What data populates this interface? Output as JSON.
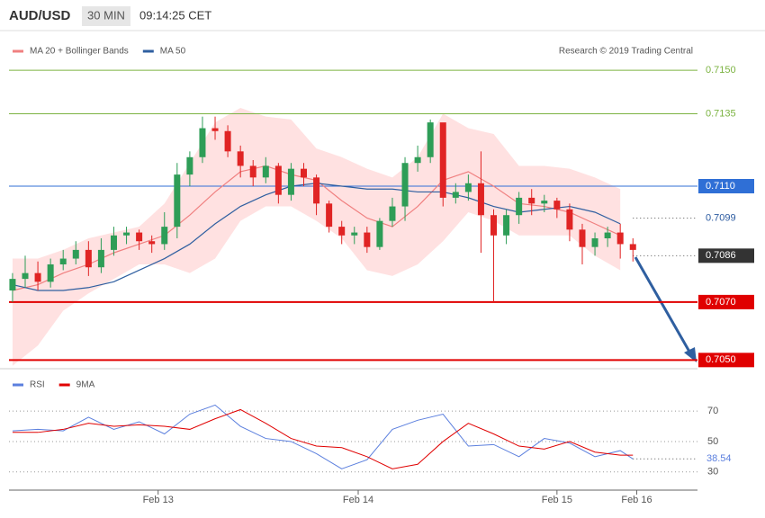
{
  "header": {
    "symbol": "AUD/USD",
    "interval": "30 MIN",
    "time": "09:14:25 CET"
  },
  "chart_data": [
    {
      "type": "candlestick",
      "source": "Research © 2019 Trading Central",
      "xlim": [
        -0.28,
        54.1
      ],
      "ylim": [
        0.7047,
        0.7155
      ],
      "up_color": "#2e9d57",
      "down_color": "#e02424",
      "candles": {
        "open": [
          0.7074,
          0.7078,
          0.708,
          0.7077,
          0.7083,
          0.7085,
          0.7088,
          0.7082,
          0.7088,
          0.7093,
          0.7094,
          0.7091,
          0.709,
          0.7096,
          0.7114,
          0.712,
          0.713,
          0.7129,
          0.7122,
          0.7117,
          0.7113,
          0.7117,
          0.7107,
          0.7116,
          0.7113,
          0.7104,
          0.7096,
          0.7093,
          0.7094,
          0.7089,
          0.7098,
          0.7103,
          0.7118,
          0.712,
          0.7132,
          0.7106,
          0.7108,
          0.7111,
          0.71,
          0.7093,
          0.71,
          0.7106,
          0.7104,
          0.7105,
          0.7102,
          0.7095,
          0.7089,
          0.7092,
          0.7094,
          0.709
        ],
        "high": [
          0.708,
          0.7086,
          0.7084,
          0.7085,
          0.7088,
          0.7091,
          0.7091,
          0.7092,
          0.7096,
          0.7096,
          0.7095,
          0.7093,
          0.7101,
          0.7118,
          0.7122,
          0.7134,
          0.7134,
          0.7131,
          0.7124,
          0.7119,
          0.712,
          0.7118,
          0.7118,
          0.7118,
          0.7114,
          0.7105,
          0.7098,
          0.7096,
          0.7096,
          0.7099,
          0.7106,
          0.712,
          0.7124,
          0.7133,
          0.7131,
          0.7111,
          0.7114,
          0.7122,
          0.7102,
          0.7102,
          0.7108,
          0.7109,
          0.7107,
          0.7106,
          0.7104,
          0.7097,
          0.7094,
          0.7096,
          0.7097,
          0.7092
        ],
        "low": [
          0.707,
          0.7075,
          0.7074,
          0.7075,
          0.7081,
          0.7083,
          0.7079,
          0.708,
          0.7086,
          0.709,
          0.7088,
          0.7087,
          0.7088,
          0.7092,
          0.711,
          0.7118,
          0.7126,
          0.712,
          0.7113,
          0.711,
          0.7111,
          0.7104,
          0.7105,
          0.711,
          0.71,
          0.7094,
          0.709,
          0.709,
          0.7087,
          0.7088,
          0.7096,
          0.7098,
          0.7115,
          0.7118,
          0.7103,
          0.7104,
          0.7105,
          0.7087,
          0.707,
          0.709,
          0.7097,
          0.71,
          0.7101,
          0.7099,
          0.7091,
          0.7083,
          0.7086,
          0.7089,
          0.7085,
          0.7084
        ],
        "close": [
          0.7078,
          0.708,
          0.7077,
          0.7083,
          0.7085,
          0.7088,
          0.7082,
          0.7088,
          0.7093,
          0.7094,
          0.7091,
          0.709,
          0.7096,
          0.7114,
          0.712,
          0.713,
          0.7129,
          0.7122,
          0.7117,
          0.7113,
          0.7117,
          0.7107,
          0.7116,
          0.7113,
          0.7104,
          0.7096,
          0.7093,
          0.7094,
          0.7089,
          0.7098,
          0.7103,
          0.7118,
          0.712,
          0.7132,
          0.7106,
          0.7108,
          0.7111,
          0.71,
          0.7093,
          0.71,
          0.7106,
          0.7104,
          0.7105,
          0.7102,
          0.7095,
          0.7089,
          0.7092,
          0.7094,
          0.709,
          0.7088
        ]
      },
      "series": [
        {
          "name": "MA 20 + Bollinger Bands",
          "color": "#f08080",
          "band_color": "#ffd9d9",
          "x": [
            0,
            2,
            4,
            6,
            8,
            10,
            12,
            14,
            16,
            18,
            20,
            22,
            24,
            26,
            28,
            30,
            32,
            34,
            36,
            38,
            40,
            42,
            44,
            46,
            48
          ],
          "values": [
            0.7074,
            0.7076,
            0.708,
            0.7083,
            0.7087,
            0.709,
            0.7093,
            0.71,
            0.7108,
            0.7115,
            0.7117,
            0.7114,
            0.7112,
            0.7105,
            0.7099,
            0.7096,
            0.7103,
            0.7112,
            0.7115,
            0.711,
            0.7104,
            0.7103,
            0.7101,
            0.7097,
            0.7093
          ],
          "upper": [
            0.7085,
            0.7085,
            0.7088,
            0.7092,
            0.7094,
            0.7096,
            0.7104,
            0.7118,
            0.7132,
            0.7137,
            0.7134,
            0.7133,
            0.7123,
            0.712,
            0.7116,
            0.7113,
            0.712,
            0.7135,
            0.713,
            0.7128,
            0.7117,
            0.7117,
            0.7116,
            0.7113,
            0.7109
          ],
          "lower": [
            0.7048,
            0.7055,
            0.7067,
            0.7073,
            0.7078,
            0.7083,
            0.7083,
            0.708,
            0.7085,
            0.7098,
            0.7103,
            0.7103,
            0.7098,
            0.7092,
            0.7081,
            0.7079,
            0.7083,
            0.7091,
            0.7101,
            0.7098,
            0.7093,
            0.7093,
            0.7093,
            0.7086,
            0.7081
          ]
        },
        {
          "name": "MA 50",
          "color": "#2f5fa0",
          "x": [
            0,
            2,
            4,
            6,
            8,
            10,
            12,
            14,
            16,
            18,
            20,
            22,
            24,
            26,
            28,
            30,
            32,
            34,
            36,
            38,
            40,
            42,
            44,
            46,
            48
          ],
          "values": [
            0.7076,
            0.7074,
            0.7074,
            0.7075,
            0.7077,
            0.7081,
            0.7085,
            0.709,
            0.7097,
            0.7103,
            0.7107,
            0.711,
            0.7111,
            0.711,
            0.7109,
            0.7109,
            0.7108,
            0.7108,
            0.7106,
            0.7103,
            0.7101,
            0.7102,
            0.7103,
            0.7101,
            0.7097
          ]
        }
      ],
      "levels": [
        {
          "value": 0.715,
          "label": "0.7150",
          "color": "#7cb342",
          "line": "solid",
          "boxed": false
        },
        {
          "value": 0.7135,
          "label": "0.7135",
          "color": "#7cb342",
          "line": "solid",
          "boxed": false
        },
        {
          "value": 0.711,
          "label": "0.7110",
          "color": "#2f6fd6",
          "line": "solid",
          "boxed": true
        },
        {
          "value": 0.7099,
          "label": "0.7099",
          "color": "#2b5aa0",
          "line": "dotted",
          "boxed": false
        },
        {
          "value": 0.7086,
          "label": "0.7086",
          "color": "#333333",
          "line": "dotted",
          "boxed": true
        },
        {
          "value": 0.707,
          "label": "0.7070",
          "color": "#e00000",
          "line": "solid",
          "boxed": true
        },
        {
          "value": 0.705,
          "label": "0.7050",
          "color": "#e00000",
          "line": "solid",
          "boxed": true
        }
      ]
    },
    {
      "type": "line",
      "xlim": [
        -0.28,
        54.1
      ],
      "ylim": [
        18,
        92
      ],
      "yticks": [
        30,
        50,
        70
      ],
      "grid": true,
      "xticks": [
        {
          "value": 11.5,
          "label": "Feb 13"
        },
        {
          "value": 27.3,
          "label": "Feb 14"
        },
        {
          "value": 43.0,
          "label": "Feb 15"
        },
        {
          "value": 49.3,
          "label": "Feb 16"
        }
      ],
      "series": [
        {
          "name": "RSI",
          "color": "#5b7fde",
          "x": [
            0,
            2,
            4,
            6,
            8,
            10,
            12,
            14,
            16,
            18,
            20,
            22,
            24,
            26,
            28,
            30,
            32,
            34,
            36,
            38,
            40,
            42,
            44,
            46,
            48,
            49
          ],
          "values": [
            57,
            58,
            57,
            66,
            58,
            63,
            55,
            68,
            74,
            60,
            52,
            50,
            42,
            32,
            38,
            58,
            64,
            68,
            47,
            48,
            40,
            52,
            49,
            40,
            44,
            38.54
          ]
        },
        {
          "name": "9MA",
          "color": "#e00000",
          "x": [
            0,
            2,
            4,
            6,
            8,
            10,
            12,
            14,
            16,
            18,
            20,
            22,
            24,
            26,
            28,
            30,
            32,
            34,
            36,
            38,
            40,
            42,
            44,
            46,
            48,
            49
          ],
          "values": [
            56,
            56,
            58,
            62,
            60,
            61,
            60,
            58,
            65,
            71,
            62,
            52,
            47,
            46,
            40,
            32,
            35,
            50,
            62,
            55,
            47,
            45,
            50,
            43,
            41,
            41
          ]
        }
      ]
    }
  ]
}
